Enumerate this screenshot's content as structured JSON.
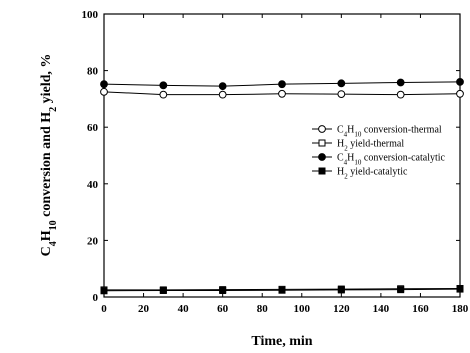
{
  "chart_data": {
    "type": "line",
    "xlabel": "Time, min",
    "ylabel_parts": [
      "C",
      "4",
      "H",
      "10",
      " conversion and H",
      "2",
      " yield, %"
    ],
    "xlim": [
      0,
      180
    ],
    "ylim": [
      0,
      100
    ],
    "xticks": [
      0,
      20,
      40,
      60,
      80,
      100,
      120,
      140,
      160,
      180
    ],
    "yticks": [
      0,
      20,
      40,
      60,
      80,
      100
    ],
    "grid": false,
    "legend_position": "right-middle",
    "x": [
      0,
      30,
      60,
      90,
      120,
      150,
      180
    ],
    "series": [
      {
        "name": "C4H10 conversion-thermal",
        "label_parts": [
          "C",
          "4",
          "H",
          "10",
          " conversion-thermal"
        ],
        "marker": "open-circle",
        "color": "#000000",
        "values": [
          72.5,
          71.5,
          71.5,
          71.8,
          71.7,
          71.5,
          71.8
        ]
      },
      {
        "name": "H2 yield-thermal",
        "label_parts": [
          "H",
          "2",
          " yield-thermal"
        ],
        "marker": "open-square",
        "color": "#000000",
        "values": [
          2.5,
          2.5,
          2.6,
          2.7,
          2.8,
          2.9,
          3.0
        ]
      },
      {
        "name": "C4H10 conversion-catalytic",
        "label_parts": [
          "C",
          "4",
          "H",
          "10",
          " conversion-catalytic"
        ],
        "marker": "filled-circle",
        "color": "#000000",
        "values": [
          75.2,
          74.8,
          74.5,
          75.2,
          75.5,
          75.8,
          76.0
        ]
      },
      {
        "name": "H2 yield-catalytic",
        "label_parts": [
          "H",
          "2",
          " yield-catalytic"
        ],
        "marker": "filled-square",
        "color": "#000000",
        "values": [
          2.2,
          2.3,
          2.3,
          2.4,
          2.5,
          2.6,
          2.8
        ]
      }
    ]
  }
}
